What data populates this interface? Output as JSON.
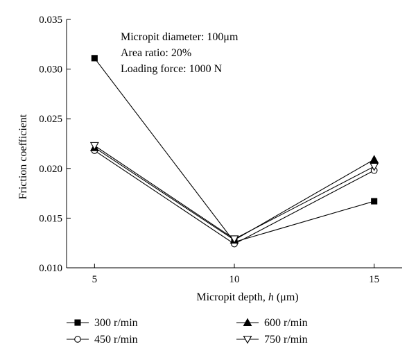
{
  "chart_data": {
    "type": "line",
    "title": "",
    "xlabel": "Micropit depth, h (μm)",
    "xlabel_parts": {
      "prefix": "Micropit depth, ",
      "var": "h",
      "suffix": " (μm)"
    },
    "ylabel": "Friction coefficient",
    "x": [
      5,
      10,
      15
    ],
    "xlim": [
      4,
      16
    ],
    "ylim": [
      0.01,
      0.035
    ],
    "x_ticks": [
      5,
      10,
      15
    ],
    "x_tick_labels": [
      "5",
      "10",
      "15"
    ],
    "y_ticks": [
      0.01,
      0.015,
      0.02,
      0.025,
      0.03,
      0.035
    ],
    "y_tick_labels": [
      "0.010",
      "0.015",
      "0.020",
      "0.025",
      "0.030",
      "0.035"
    ],
    "grid": false,
    "legend_position": "bottom",
    "annotations": [
      "Micropit diameter: 100μm",
      "Area ratio: 20%",
      "Loading force: 1000 N"
    ],
    "series": [
      {
        "name": "300 r/min",
        "marker": "square-filled",
        "values": [
          0.0311,
          0.0126,
          0.0167
        ]
      },
      {
        "name": "450 r/min",
        "marker": "circle-open",
        "values": [
          0.0218,
          0.0124,
          0.0198
        ]
      },
      {
        "name": "600 r/min",
        "marker": "triangle-up-filled",
        "values": [
          0.0221,
          0.0128,
          0.0209
        ]
      },
      {
        "name": "750 r/min",
        "marker": "triangle-down-open",
        "values": [
          0.0223,
          0.0129,
          0.0202
        ]
      }
    ]
  }
}
